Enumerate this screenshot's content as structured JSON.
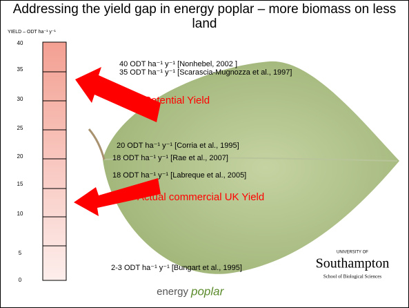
{
  "title": "Addressing the yield gap in energy poplar – more biomass on less land",
  "axis": {
    "label": "YIELD – ODT ha⁻¹ y⁻¹",
    "ticks": [
      "0",
      "5",
      "10",
      "15",
      "20",
      "25",
      "30",
      "35",
      "40"
    ]
  },
  "annotations": [
    "40 ODT ha⁻¹ y⁻¹ [Nonhebel, 2002 ]",
    "35 ODT ha⁻¹ y⁻¹ [Scarascia-Mugnozza et al., 1997]",
    "20 ODT ha⁻¹ y⁻¹ [Corria et al., 1995]",
    "18 ODT ha⁻¹ y⁻¹ [Rae et al., 2007]",
    "18 ODT ha⁻¹ y⁻¹ [Labreque et al., 2005]",
    "2-3 ODT ha⁻¹  y⁻¹ [Bungart et al., 1995]"
  ],
  "arrows": [
    "Potential Yield",
    "Actual commercial UK Yield"
  ],
  "logos": {
    "university_of": "UNIVERSITY OF",
    "university": "Southampton",
    "school": "School of Biological Sciences",
    "project_a": "energy",
    "project_b": "poplar"
  }
}
